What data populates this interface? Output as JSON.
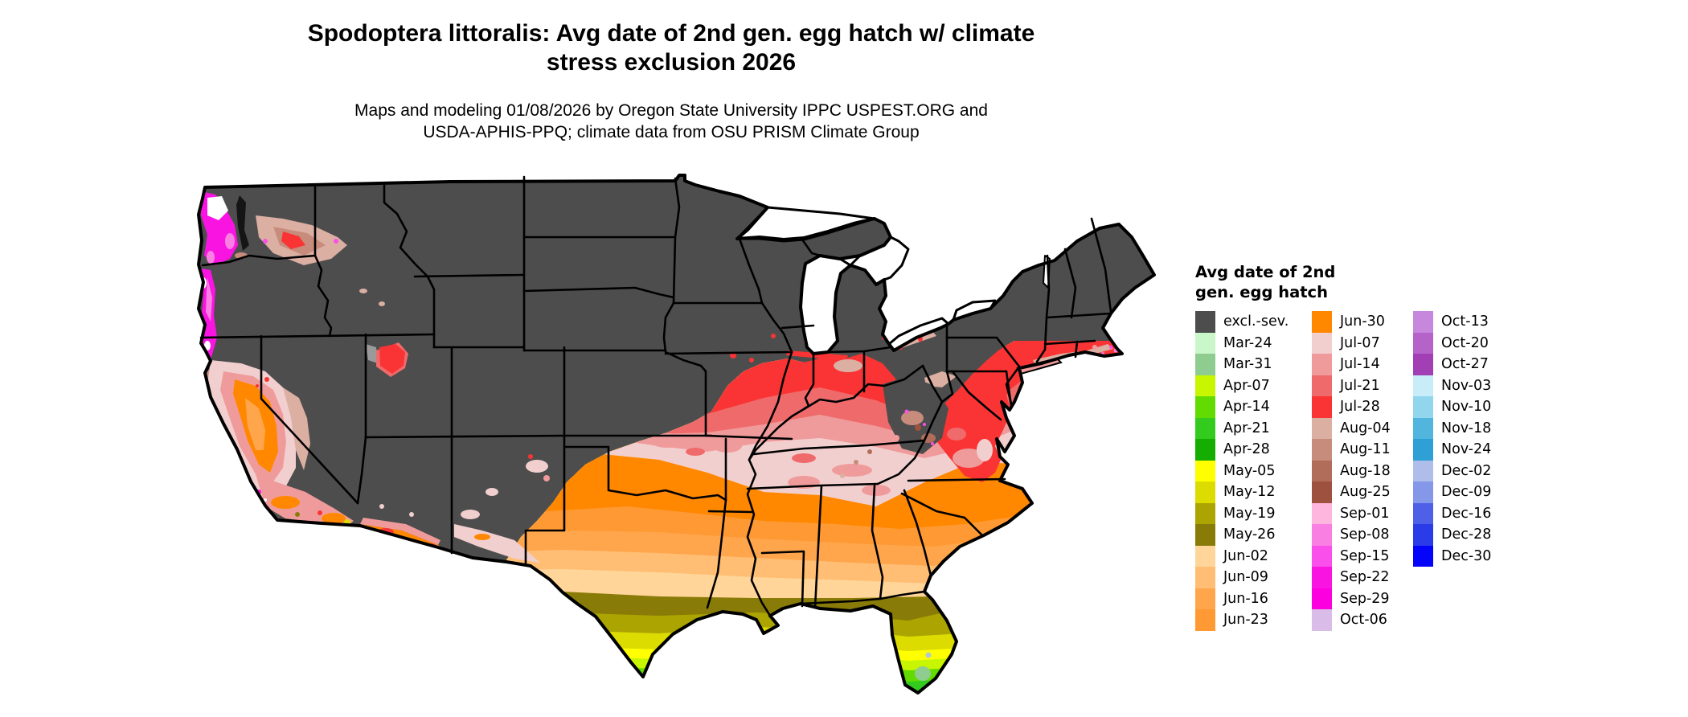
{
  "title": {
    "line1": "Spodoptera littoralis: Avg date of 2nd gen. egg hatch w/ climate",
    "line2": "stress exclusion 2026"
  },
  "subtitle": {
    "line1": "Maps and modeling 01/08/2026 by Oregon State University IPPC USPEST.ORG and",
    "line2": "USDA-APHIS-PPQ; climate data from OSU PRISM Climate Group"
  },
  "legend": {
    "title_line1": "Avg date of 2nd",
    "title_line2": "gen. egg hatch",
    "columns": [
      [
        {
          "label": "excl.-sev.",
          "key": "excl"
        },
        {
          "label": "Mar-24",
          "key": "mar24"
        },
        {
          "label": "Mar-31",
          "key": "mar31"
        },
        {
          "label": "Apr-07",
          "key": "apr07"
        },
        {
          "label": "Apr-14",
          "key": "apr14"
        },
        {
          "label": "Apr-21",
          "key": "apr21"
        },
        {
          "label": "Apr-28",
          "key": "apr28"
        },
        {
          "label": "May-05",
          "key": "may05"
        },
        {
          "label": "May-12",
          "key": "may12"
        },
        {
          "label": "May-19",
          "key": "may19"
        },
        {
          "label": "May-26",
          "key": "may26"
        },
        {
          "label": "Jun-02",
          "key": "jun02"
        },
        {
          "label": "Jun-09",
          "key": "jun09"
        },
        {
          "label": "Jun-16",
          "key": "jun16"
        },
        {
          "label": "Jun-23",
          "key": "jun23"
        }
      ],
      [
        {
          "label": "Jun-30",
          "key": "jun30"
        },
        {
          "label": "Jul-07",
          "key": "jul07"
        },
        {
          "label": "Jul-14",
          "key": "jul14"
        },
        {
          "label": "Jul-21",
          "key": "jul21"
        },
        {
          "label": "Jul-28",
          "key": "jul28"
        },
        {
          "label": "Aug-04",
          "key": "aug04"
        },
        {
          "label": "Aug-11",
          "key": "aug11"
        },
        {
          "label": "Aug-18",
          "key": "aug18"
        },
        {
          "label": "Aug-25",
          "key": "aug25"
        },
        {
          "label": "Sep-01",
          "key": "sep01"
        },
        {
          "label": "Sep-08",
          "key": "sep08"
        },
        {
          "label": "Sep-15",
          "key": "sep15"
        },
        {
          "label": "Sep-22",
          "key": "sep22"
        },
        {
          "label": "Sep-29",
          "key": "sep29"
        },
        {
          "label": "Oct-06",
          "key": "oct06"
        }
      ],
      [
        {
          "label": "Oct-13",
          "key": "oct13"
        },
        {
          "label": "Oct-20",
          "key": "oct20"
        },
        {
          "label": "Oct-27",
          "key": "oct27"
        },
        {
          "label": "Nov-03",
          "key": "nov03"
        },
        {
          "label": "Nov-10",
          "key": "nov10"
        },
        {
          "label": "Nov-18",
          "key": "nov18"
        },
        {
          "label": "Nov-24",
          "key": "nov24"
        },
        {
          "label": "Dec-02",
          "key": "dec02"
        },
        {
          "label": "Dec-09",
          "key": "dec09"
        },
        {
          "label": "Dec-16",
          "key": "dec16"
        },
        {
          "label": "Dec-28",
          "key": "dec28"
        },
        {
          "label": "Dec-30",
          "key": "dec30"
        }
      ]
    ]
  },
  "map": {
    "region": "Contiguous United States",
    "type": "choropleth raster of average 2nd generation egg hatch date with climate stress exclusion",
    "palette": {
      "excl": "#4D4D4D",
      "mar24": "#C9F7C9",
      "mar31": "#8FCC8F",
      "apr07": "#C8F500",
      "apr14": "#62DC00",
      "apr21": "#33CC1E",
      "apr28": "#14AD00",
      "may05": "#FFFF00",
      "may12": "#DCDC00",
      "may19": "#ACA400",
      "may26": "#897B07",
      "jun02": "#FFD599",
      "jun09": "#FFBE73",
      "jun16": "#FFA64D",
      "jun23": "#FF9933",
      "jun30": "#FF8800",
      "jul07": "#F2CFCF",
      "jul14": "#F09B9B",
      "jul21": "#EF6B6B",
      "jul28": "#FA3434",
      "aug04": "#DCAFA3",
      "aug11": "#C78C7B",
      "aug18": "#B26C5A",
      "aug25": "#9F5140",
      "sep01": "#FFB6DE",
      "sep08": "#F980E2",
      "sep15": "#FA4FEA",
      "sep22": "#FA14E2",
      "sep29": "#FD00E0",
      "oct06": "#D9BCE8",
      "oct13": "#C687DC",
      "oct20": "#B562C9",
      "oct27": "#A23FB5",
      "nov03": "#C9ECF9",
      "nov10": "#92D6EE",
      "nov18": "#52B5DD",
      "nov24": "#2FA0D5",
      "dec02": "#AEBDEA",
      "dec09": "#8497E9",
      "dec16": "#4E60E8",
      "dec28": "#2A3BE8",
      "dec30": "#0404FA",
      "water": "#FFFFFF",
      "puget": "#151515",
      "gsl": "#9A9A9A",
      "oke": "#AFCBCF"
    }
  }
}
